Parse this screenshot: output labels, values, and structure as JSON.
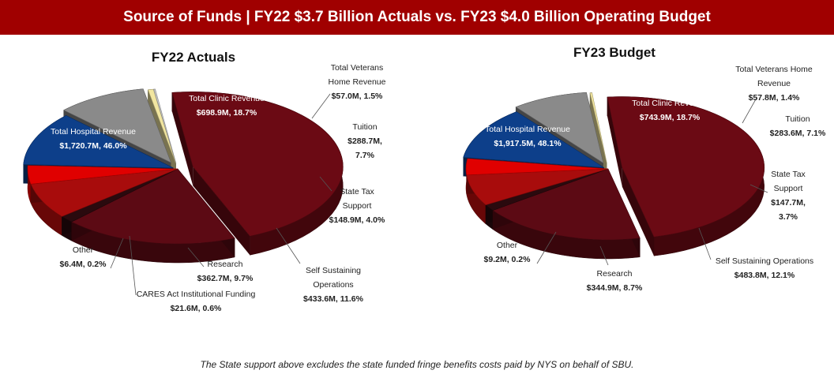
{
  "page_title": "Source of Funds | FY22 $3.7 Billion Actuals vs. FY23 $4.0 Billion Operating Budget",
  "footnote": "The State support above excludes the state funded fringe benefits costs paid by NYS on behalf of SBU.",
  "colors": {
    "banner": "#a00000",
    "hospital": "#6b0a14",
    "clinic": "#5c0a14",
    "veterans": "#2a0a0e",
    "tuition": "#a80c0c",
    "state_tax": "#e00000",
    "self_sustaining": "#0d3f8a",
    "research": "#8a8a8a",
    "cares": "#f2e6a0",
    "other": "#c8c8c8"
  },
  "chart_data": [
    {
      "type": "pie",
      "title": "FY22 Actuals",
      "slices": [
        {
          "key": "hospital",
          "label": [
            "Total Hospital Revenue",
            "$1,720.7M, 46.0%"
          ],
          "value": 1720.7,
          "percent": 46.0,
          "color": "#6b0a14"
        },
        {
          "key": "clinic",
          "label": [
            "Total Clinic Revenue",
            "$698.9M, 18.7%"
          ],
          "value": 698.9,
          "percent": 18.7,
          "color": "#5c0a14"
        },
        {
          "key": "veterans",
          "label": [
            "Total Veterans",
            "Home Revenue",
            "$57.0M, 1.5%"
          ],
          "value": 57.0,
          "percent": 1.5,
          "color": "#2a0a0e"
        },
        {
          "key": "tuition",
          "label": [
            "Tuition",
            "$288.7M,",
            "7.7%"
          ],
          "value": 288.7,
          "percent": 7.7,
          "color": "#a80c0c"
        },
        {
          "key": "state_tax",
          "label": [
            "State Tax",
            "Support",
            "$148.9M, 4.0%"
          ],
          "value": 148.9,
          "percent": 4.0,
          "color": "#e00000"
        },
        {
          "key": "self_sustaining",
          "label": [
            "Self Sustaining",
            "Operations",
            "$433.6M, 11.6%"
          ],
          "value": 433.6,
          "percent": 11.6,
          "color": "#0d3f8a"
        },
        {
          "key": "research",
          "label": [
            "Research",
            "$362.7M, 9.7%"
          ],
          "value": 362.7,
          "percent": 9.7,
          "color": "#8a8a8a"
        },
        {
          "key": "cares",
          "label": [
            "CARES Act Institutional Funding",
            "$21.6M, 0.6%"
          ],
          "value": 21.6,
          "percent": 0.6,
          "color": "#f2e6a0"
        },
        {
          "key": "other",
          "label": [
            "Other",
            "$6.4M, 0.2%"
          ],
          "value": 6.4,
          "percent": 0.2,
          "color": "#c8c8c8"
        }
      ]
    },
    {
      "type": "pie",
      "title": "FY23 Budget",
      "slices": [
        {
          "key": "hospital",
          "label": [
            "Total Hospital Revenue",
            "$1,917.5M, 48.1%"
          ],
          "value": 1917.5,
          "percent": 48.1,
          "color": "#6b0a14"
        },
        {
          "key": "clinic",
          "label": [
            "Total Clinic Revenue",
            "$743.9M, 18.7%"
          ],
          "value": 743.9,
          "percent": 18.7,
          "color": "#5c0a14"
        },
        {
          "key": "veterans",
          "label": [
            "Total Veterans Home",
            "Revenue",
            "$57.8M, 1.4%"
          ],
          "value": 57.8,
          "percent": 1.4,
          "color": "#2a0a0e"
        },
        {
          "key": "tuition",
          "label": [
            "Tuition",
            "$283.6M, 7.1%"
          ],
          "value": 283.6,
          "percent": 7.1,
          "color": "#a80c0c"
        },
        {
          "key": "state_tax",
          "label": [
            "State Tax",
            "Support",
            "$147.7M,",
            "3.7%"
          ],
          "value": 147.7,
          "percent": 3.7,
          "color": "#e00000"
        },
        {
          "key": "self_sustaining",
          "label": [
            "Self Sustaining Operations",
            "$483.8M, 12.1%"
          ],
          "value": 483.8,
          "percent": 12.1,
          "color": "#0d3f8a"
        },
        {
          "key": "research",
          "label": [
            "Research",
            "$344.9M, 8.7%"
          ],
          "value": 344.9,
          "percent": 8.7,
          "color": "#8a8a8a"
        },
        {
          "key": "other",
          "label": [
            "Other",
            "$9.2M, 0.2%"
          ],
          "value": 9.2,
          "percent": 0.2,
          "color": "#f2e6a0"
        }
      ]
    }
  ]
}
